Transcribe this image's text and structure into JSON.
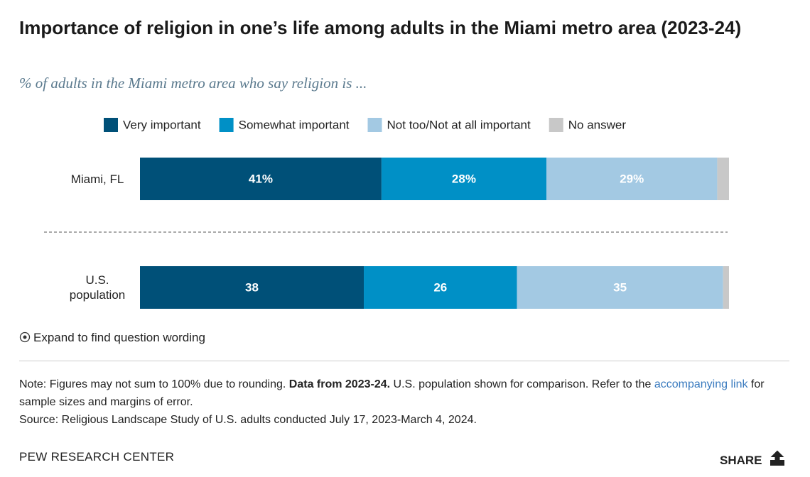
{
  "chart_data": {
    "type": "stacked_bar_horizontal",
    "title": "Importance of religion in one’s life among adults in the Miami metro area (2023-24)",
    "subtitle": "% of adults in the Miami metro area who say religion is ...",
    "categories": [
      "Miami, FL",
      "U.S. population"
    ],
    "xlim": [
      0,
      100
    ],
    "series": [
      {
        "name": "Very important",
        "color": "#005078",
        "values": [
          41,
          38
        ],
        "value_labels": [
          "41%",
          "38"
        ]
      },
      {
        "name": "Somewhat important",
        "color": "#0090c6",
        "values": [
          28,
          26
        ],
        "value_labels": [
          "28%",
          "26"
        ]
      },
      {
        "name": "Not too/Not at all important",
        "color": "#a3c9e3",
        "values": [
          29,
          35
        ],
        "value_labels": [
          "29%",
          "35"
        ]
      },
      {
        "name": "No answer",
        "color": "#c8c8c8",
        "values": [
          2,
          1
        ]
      }
    ]
  },
  "expand": "Expand to find question wording",
  "note": {
    "intro": "Note: Figures may not sum to 100% due to rounding.",
    "bold": "Data from 2023-24.",
    "middle": "U.S. population shown for comparison. Refer to the",
    "link": "accompanying link",
    "end": "for sample sizes and margins of error."
  },
  "source": "Source: Religious Landscape Study of U.S. adults conducted July 17, 2023-March 4, 2024.",
  "footer": {
    "brand": "PEW RESEARCH CENTER",
    "share": "SHARE"
  }
}
